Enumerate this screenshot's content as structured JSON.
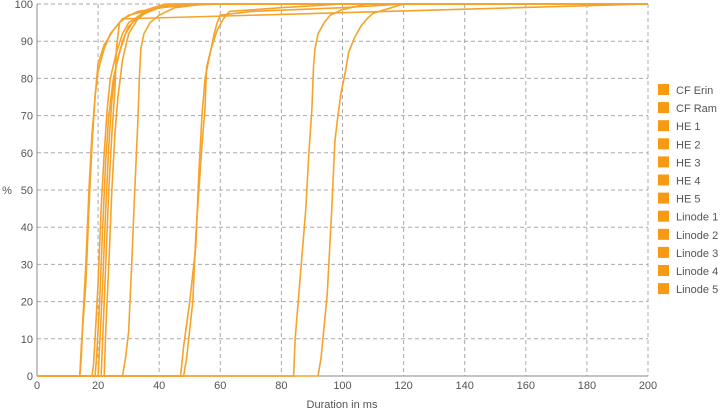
{
  "chart_data": {
    "type": "line",
    "xlabel": "Duration in ms",
    "ylabel": "%",
    "xlim": [
      0,
      200
    ],
    "ylim": [
      0,
      100
    ],
    "xticks": [
      "0",
      "20",
      "40",
      "60",
      "80",
      "100",
      "120",
      "140",
      "160",
      "180",
      "200"
    ],
    "yticks": [
      "0",
      "10",
      "20",
      "30",
      "40",
      "50",
      "60",
      "70",
      "80",
      "90",
      "100"
    ],
    "grid": true,
    "legend_position": "right",
    "series_color": "#f5a32a",
    "legend_color": "#f59a12",
    "series": [
      {
        "name": "CF Erin",
        "points": [
          [
            0,
            0
          ],
          [
            14,
            0
          ],
          [
            14.5,
            5
          ],
          [
            15,
            15
          ],
          [
            16,
            30
          ],
          [
            17,
            50
          ],
          [
            18,
            65
          ],
          [
            19,
            75
          ],
          [
            20,
            82
          ],
          [
            22,
            88
          ],
          [
            24,
            92
          ],
          [
            27,
            95
          ],
          [
            30,
            97
          ],
          [
            35,
            98
          ],
          [
            40,
            99
          ],
          [
            55,
            100
          ],
          [
            200,
            100
          ]
        ]
      },
      {
        "name": "CF Ram",
        "points": [
          [
            0,
            0
          ],
          [
            14,
            0
          ],
          [
            14.5,
            8
          ],
          [
            16,
            25
          ],
          [
            17,
            45
          ],
          [
            18,
            62
          ],
          [
            19,
            75
          ],
          [
            20,
            84
          ],
          [
            22,
            89
          ],
          [
            25,
            93
          ],
          [
            28,
            96
          ],
          [
            33,
            98
          ],
          [
            45,
            99.5
          ],
          [
            60,
            100
          ],
          [
            200,
            100
          ]
        ]
      },
      {
        "name": "HE 1",
        "points": [
          [
            0,
            0
          ],
          [
            18,
            0
          ],
          [
            18.5,
            3
          ],
          [
            19,
            10
          ],
          [
            20,
            25
          ],
          [
            21,
            45
          ],
          [
            22,
            60
          ],
          [
            23,
            72
          ],
          [
            24,
            80
          ],
          [
            26,
            87
          ],
          [
            28,
            92
          ],
          [
            30,
            95
          ],
          [
            34,
            97
          ],
          [
            38,
            99
          ],
          [
            45,
            100
          ],
          [
            200,
            100
          ]
        ]
      },
      {
        "name": "HE 2",
        "points": [
          [
            0,
            0
          ],
          [
            19,
            0
          ],
          [
            19.5,
            5
          ],
          [
            20.5,
            20
          ],
          [
            21.5,
            40
          ],
          [
            22.5,
            58
          ],
          [
            23.5,
            70
          ],
          [
            25,
            80
          ],
          [
            27,
            87
          ],
          [
            29,
            92
          ],
          [
            32,
            96
          ],
          [
            36,
            98.5
          ],
          [
            42,
            100
          ],
          [
            200,
            100
          ]
        ]
      },
      {
        "name": "HE 3",
        "points": [
          [
            0,
            0
          ],
          [
            20,
            0
          ],
          [
            20.5,
            8
          ],
          [
            21.5,
            25
          ],
          [
            22.5,
            45
          ],
          [
            23.5,
            62
          ],
          [
            24.5,
            74
          ],
          [
            26,
            84
          ],
          [
            28,
            90
          ],
          [
            30,
            94
          ],
          [
            34,
            97
          ],
          [
            40,
            99
          ],
          [
            50,
            100
          ],
          [
            200,
            100
          ]
        ]
      },
      {
        "name": "HE 4",
        "points": [
          [
            0,
            0
          ],
          [
            21,
            0
          ],
          [
            21.5,
            10
          ],
          [
            22.5,
            30
          ],
          [
            23.5,
            50
          ],
          [
            24.5,
            65
          ],
          [
            25.5,
            77
          ],
          [
            26,
            88
          ],
          [
            27,
            95
          ],
          [
            28,
            96
          ],
          [
            200,
            100
          ]
        ]
      },
      {
        "name": "HE 5",
        "points": [
          [
            0,
            0
          ],
          [
            22,
            0
          ],
          [
            22.5,
            12
          ],
          [
            23.5,
            30
          ],
          [
            24.5,
            50
          ],
          [
            25.5,
            65
          ],
          [
            26.5,
            75
          ],
          [
            28,
            85
          ],
          [
            30,
            92
          ],
          [
            33,
            96
          ],
          [
            37,
            98.5
          ],
          [
            45,
            100
          ],
          [
            200,
            100
          ]
        ]
      },
      {
        "name": "Linode 1",
        "points": [
          [
            0,
            0
          ],
          [
            28,
            0
          ],
          [
            29,
            5
          ],
          [
            30,
            12
          ],
          [
            31,
            30
          ],
          [
            32,
            50
          ],
          [
            33,
            68
          ],
          [
            33.5,
            80
          ],
          [
            34,
            88
          ],
          [
            35,
            92
          ],
          [
            37,
            95
          ],
          [
            40,
            97
          ],
          [
            45,
            99
          ],
          [
            55,
            100
          ],
          [
            200,
            100
          ]
        ]
      },
      {
        "name": "Linode 2",
        "points": [
          [
            0,
            0
          ],
          [
            47,
            0
          ],
          [
            48,
            8
          ],
          [
            50,
            20
          ],
          [
            52,
            35
          ],
          [
            53,
            55
          ],
          [
            54,
            70
          ],
          [
            55,
            80
          ],
          [
            56,
            84
          ],
          [
            57,
            88
          ],
          [
            58,
            92
          ],
          [
            59,
            95
          ],
          [
            60,
            97
          ],
          [
            70,
            98
          ],
          [
            100,
            99
          ],
          [
            120,
            100
          ],
          [
            200,
            100
          ]
        ]
      },
      {
        "name": "Linode 3",
        "points": [
          [
            0,
            0
          ],
          [
            48,
            0
          ],
          [
            49,
            5
          ],
          [
            51,
            20
          ],
          [
            52,
            38
          ],
          [
            53,
            50
          ],
          [
            54,
            62
          ],
          [
            55,
            72
          ],
          [
            55.5,
            83
          ],
          [
            57,
            88
          ],
          [
            59,
            93
          ],
          [
            61,
            96
          ],
          [
            63,
            98
          ],
          [
            80,
            99
          ],
          [
            100,
            100
          ],
          [
            200,
            100
          ]
        ]
      },
      {
        "name": "Linode 4",
        "points": [
          [
            0,
            0
          ],
          [
            84,
            0
          ],
          [
            84.5,
            10
          ],
          [
            86,
            25
          ],
          [
            88,
            45
          ],
          [
            89,
            60
          ],
          [
            90,
            72
          ],
          [
            90.5,
            83
          ],
          [
            91,
            88
          ],
          [
            92,
            92
          ],
          [
            94,
            95
          ],
          [
            96,
            97
          ],
          [
            100,
            98.5
          ],
          [
            108,
            100
          ],
          [
            200,
            100
          ]
        ]
      },
      {
        "name": "Linode 5",
        "points": [
          [
            0,
            0
          ],
          [
            92,
            0
          ],
          [
            93,
            5
          ],
          [
            95,
            22
          ],
          [
            96.5,
            45
          ],
          [
            97.5,
            63
          ],
          [
            98.5,
            70
          ],
          [
            99.5,
            76
          ],
          [
            101,
            82
          ],
          [
            102,
            87
          ],
          [
            104,
            91
          ],
          [
            106,
            94
          ],
          [
            108,
            96
          ],
          [
            110,
            97.5
          ],
          [
            120,
            100
          ],
          [
            200,
            100
          ]
        ]
      }
    ]
  }
}
